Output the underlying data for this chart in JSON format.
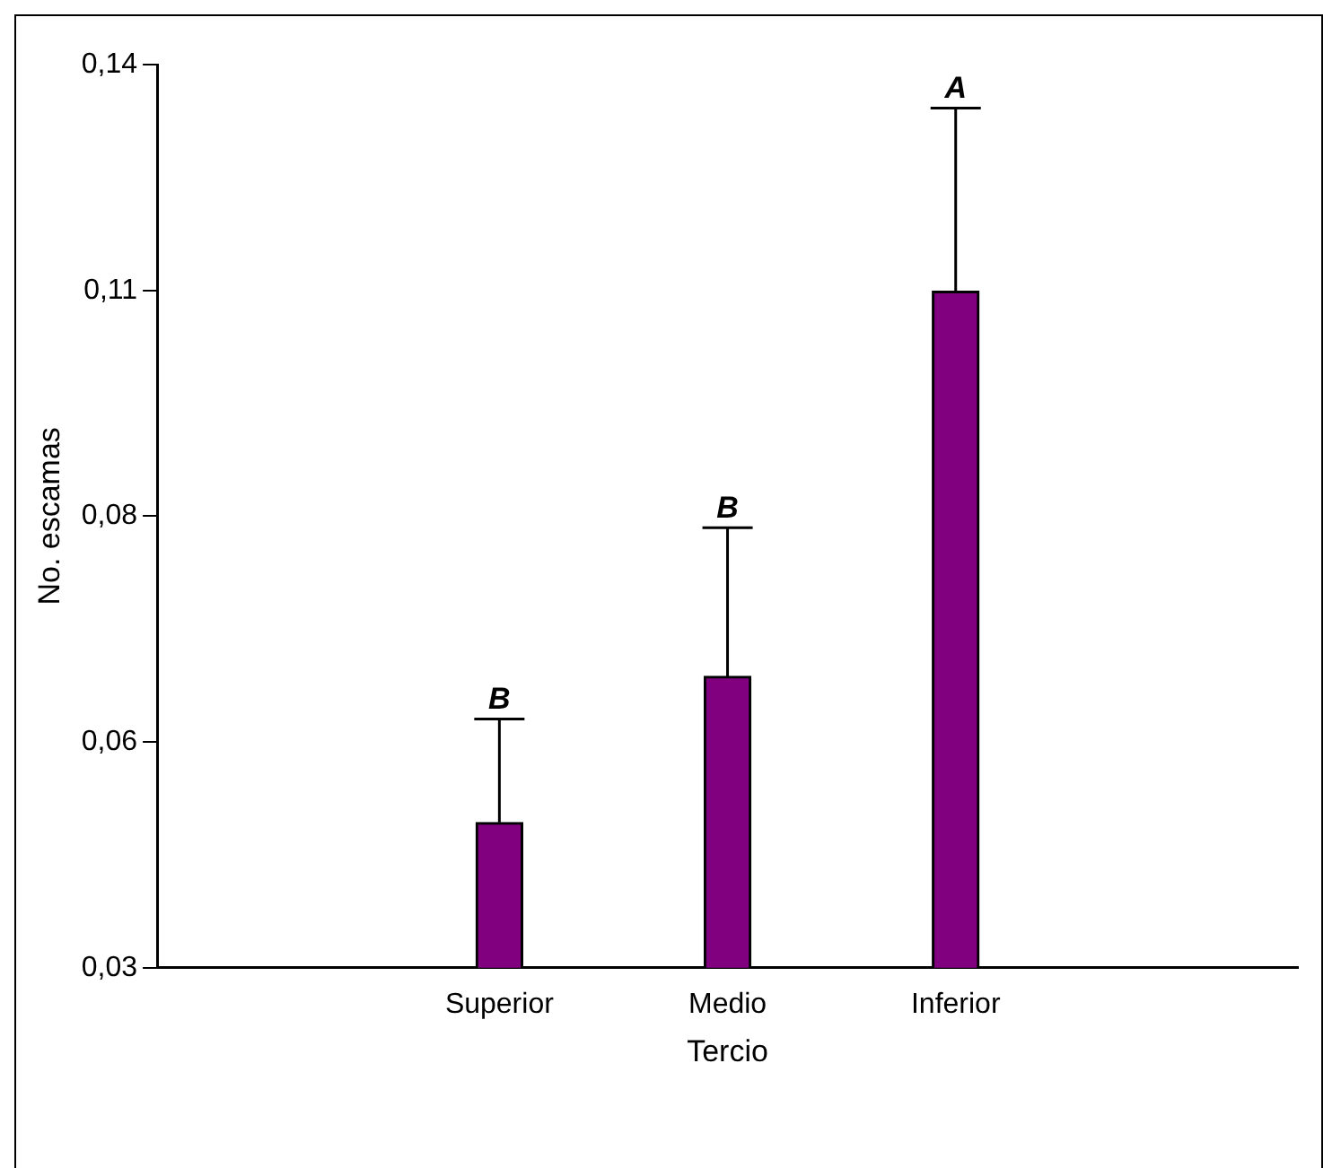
{
  "chart_data": {
    "type": "bar",
    "xlabel": "Tercio",
    "ylabel": "No. escamas",
    "categories": [
      "Superior",
      "Medio",
      "Inferior"
    ],
    "values": [
      0.0477,
      0.0655,
      0.1124
    ],
    "errors": [
      [
        0.0477,
        0.0603
      ],
      [
        0.0655,
        0.0836
      ],
      [
        0.1124,
        0.1347
      ]
    ],
    "color": "#800080",
    "ylim": [
      0.03,
      0.14
    ],
    "yticks": [
      {
        "value": 0.03,
        "label": "0,03"
      },
      {
        "value": 0.0575,
        "label": "0,06"
      },
      {
        "value": 0.085,
        "label": "0,08"
      },
      {
        "value": 0.1125,
        "label": "0,11"
      },
      {
        "value": 0.14,
        "label": "0,14"
      }
    ],
    "annotations": [
      {
        "text": "B",
        "x": "Superior",
        "y": 0.0603
      },
      {
        "text": "B",
        "x": "Medio",
        "y": 0.0836
      },
      {
        "text": "A",
        "x": "Inferior",
        "y": 0.1347
      }
    ],
    "grid": false,
    "legend": false
  }
}
